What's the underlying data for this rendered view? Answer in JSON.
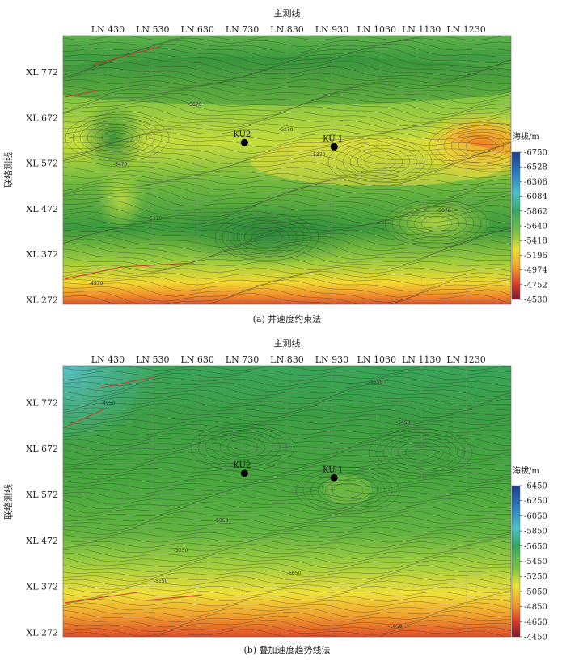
{
  "chart_data": [
    {
      "type": "heatmap",
      "panel_caption": "(a) 井速度约束法",
      "x_axis_title": "主测线",
      "y_axis_title": "联络测线",
      "x_ticks": [
        "LN 430",
        "LN 530",
        "LN 630",
        "LN 730",
        "LN 830",
        "LN 930",
        "LN 1030",
        "LN 1130",
        "LN 1230"
      ],
      "x_values": [
        430,
        530,
        630,
        730,
        830,
        930,
        1030,
        1130,
        1230
      ],
      "y_ticks": [
        "XL 772",
        "XL 672",
        "XL 572",
        "XL 472",
        "XL 372",
        "XL 272"
      ],
      "y_values": [
        772,
        672,
        572,
        472,
        372,
        272
      ],
      "xlim": [
        330,
        1330
      ],
      "ylim": [
        262,
        852
      ],
      "colorbar_title": "海拔/m",
      "colorbar_ticks": [
        "-6750",
        "-6528",
        "-6306",
        "-6084",
        "-5862",
        "-5640",
        "-5418",
        "-5196",
        "-4974",
        "-4752",
        "-4530"
      ],
      "colorbar_range": [
        -6750,
        -4530
      ],
      "contour_labels": [
        "-5270",
        "-5370",
        "-5470",
        "-5570",
        "-5170",
        "-5070",
        "-4970"
      ],
      "wells": [
        {
          "name": "KU2",
          "x": 735,
          "y": 617
        },
        {
          "name": "KU 1",
          "x": 935,
          "y": 608
        }
      ],
      "grid": true
    },
    {
      "type": "heatmap",
      "panel_caption": "(b) 叠加速度趋势线法",
      "x_axis_title": "主测线",
      "y_axis_title": "联络测线",
      "x_ticks": [
        "LN 430",
        "LN 530",
        "LN 630",
        "LN 730",
        "LN 830",
        "LN 930",
        "LN 1030",
        "LN 1130",
        "LN 1230"
      ],
      "x_values": [
        430,
        530,
        630,
        730,
        830,
        930,
        1030,
        1130,
        1230
      ],
      "y_ticks": [
        "XL 772",
        "XL 672",
        "XL 572",
        "XL 472",
        "XL 372",
        "XL 272"
      ],
      "y_values": [
        772,
        672,
        572,
        472,
        372,
        272
      ],
      "xlim": [
        330,
        1330
      ],
      "ylim": [
        262,
        852
      ],
      "colorbar_title": "海拔/m",
      "colorbar_ticks": [
        "-6450",
        "-6250",
        "-6050",
        "-5850",
        "-5650",
        "-5450",
        "-5250",
        "-5050",
        "-4850",
        "-4650",
        "-4450"
      ],
      "colorbar_range": [
        -6450,
        -4450
      ],
      "contour_labels": [
        "-5550",
        "-5450",
        "-5350",
        "-5250",
        "-5150",
        "-5050",
        "-4950",
        "-5650"
      ],
      "wells": [
        {
          "name": "KU2",
          "x": 735,
          "y": 618
        },
        {
          "name": "KU 1",
          "x": 935,
          "y": 608
        }
      ],
      "grid": true
    }
  ]
}
